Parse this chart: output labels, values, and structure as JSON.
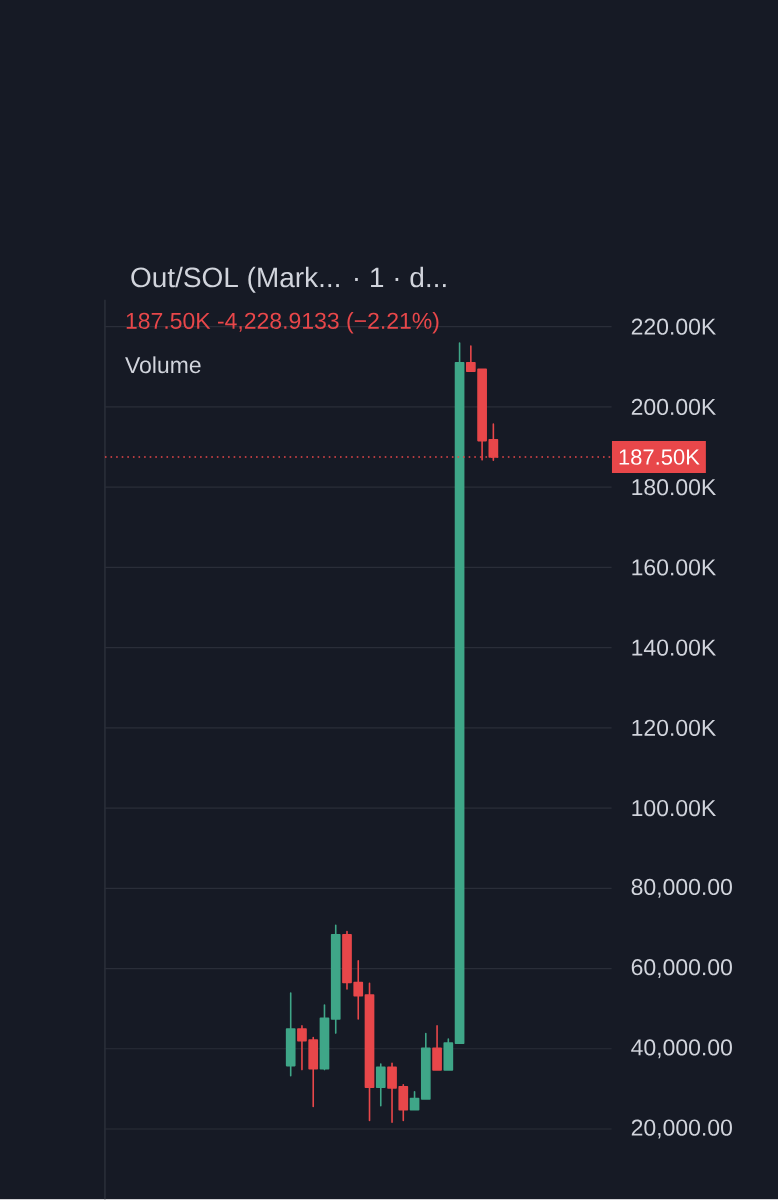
{
  "chart_data": {
    "type": "candlestick",
    "title": "Out/SOL (Mark...  · 1 · d...",
    "subtitle": "187.50K -4,228.9133 (−2.21%)",
    "annotations": [
      "Volume"
    ],
    "categories": [
      null,
      null,
      null,
      null,
      null,
      null,
      null,
      null,
      null,
      null,
      null,
      null,
      null,
      null,
      null,
      null,
      null,
      null,
      null,
      null,
      null,
      null,
      null,
      null,
      null,
      null,
      null,
      null,
      null,
      null,
      null,
      null,
      null,
      null,
      null,
      null,
      null,
      null,
      null,
      null,
      null,
      null,
      null,
      null,
      null
    ],
    "ohlc": [
      null,
      null,
      null,
      null,
      null,
      null,
      null,
      null,
      null,
      null,
      null,
      null,
      null,
      null,
      null,
      null,
      [
        35800,
        53900,
        33300,
        44900
      ],
      [
        44900,
        45700,
        34800,
        42000
      ],
      [
        42200,
        42800,
        25600,
        35000
      ],
      [
        35000,
        50900,
        34800,
        47600
      ],
      [
        47400,
        70800,
        43900,
        68400
      ],
      [
        68400,
        69200,
        54900,
        56500
      ],
      [
        56500,
        61900,
        47400,
        53200
      ],
      [
        53400,
        56300,
        22100,
        30400
      ],
      [
        30400,
        36200,
        25800,
        35400
      ],
      [
        35400,
        36400,
        21700,
        30200
      ],
      [
        30500,
        31000,
        22100,
        24800
      ],
      [
        24800,
        29300,
        24800,
        27600
      ],
      [
        27500,
        43800,
        27500,
        40100
      ],
      [
        40100,
        45700,
        34700,
        34700
      ],
      [
        34700,
        42400,
        34700,
        41400
      ],
      [
        41400,
        215900,
        41400,
        211000
      ],
      [
        211000,
        215200,
        208900,
        208900
      ],
      [
        209400,
        209400,
        186800,
        191600
      ],
      [
        191800,
        195700,
        186700,
        187500
      ],
      null,
      null,
      null,
      null,
      null,
      null,
      null,
      null,
      null,
      null
    ],
    "colors": [
      null,
      null,
      null,
      null,
      null,
      null,
      null,
      null,
      null,
      null,
      null,
      null,
      null,
      null,
      null,
      null,
      "#3fa688",
      "#e8474a",
      "#e8474a",
      "#3fa688",
      "#3fa688",
      "#e8474a",
      "#e8474a",
      "#e8474a",
      "#3fa688",
      "#e8474a",
      "#e8474a",
      "#3fa688",
      "#3fa688",
      "#e8474a",
      "#3fa688",
      "#3fa688",
      "#e8474a",
      "#e8474a",
      "#e8474a",
      null,
      null,
      null,
      null,
      null,
      null,
      null,
      null,
      null,
      null
    ],
    "ylim": [
      2500,
      226700
    ],
    "yticks": [
      {
        "value": 20000,
        "label": "20,000.00"
      },
      {
        "value": 40000,
        "label": "40,000.00"
      },
      {
        "value": 60000,
        "label": "60,000.00"
      },
      {
        "value": 80000,
        "label": "80,000.00"
      },
      {
        "value": 100000,
        "label": "100.00K"
      },
      {
        "value": 120000,
        "label": "120.00K"
      },
      {
        "value": 140000,
        "label": "140.00K"
      },
      {
        "value": 160000,
        "label": "160.00K"
      },
      {
        "value": 180000,
        "label": "180.00K"
      },
      {
        "value": 200000,
        "label": "200.00K"
      },
      {
        "value": 220000,
        "label": "220.00K"
      }
    ],
    "grid": "y",
    "ref_lines": [
      {
        "axis": "y",
        "value": 187500,
        "label": "187.50K",
        "color": "#e8474a",
        "line_style": "dotted"
      }
    ]
  }
}
